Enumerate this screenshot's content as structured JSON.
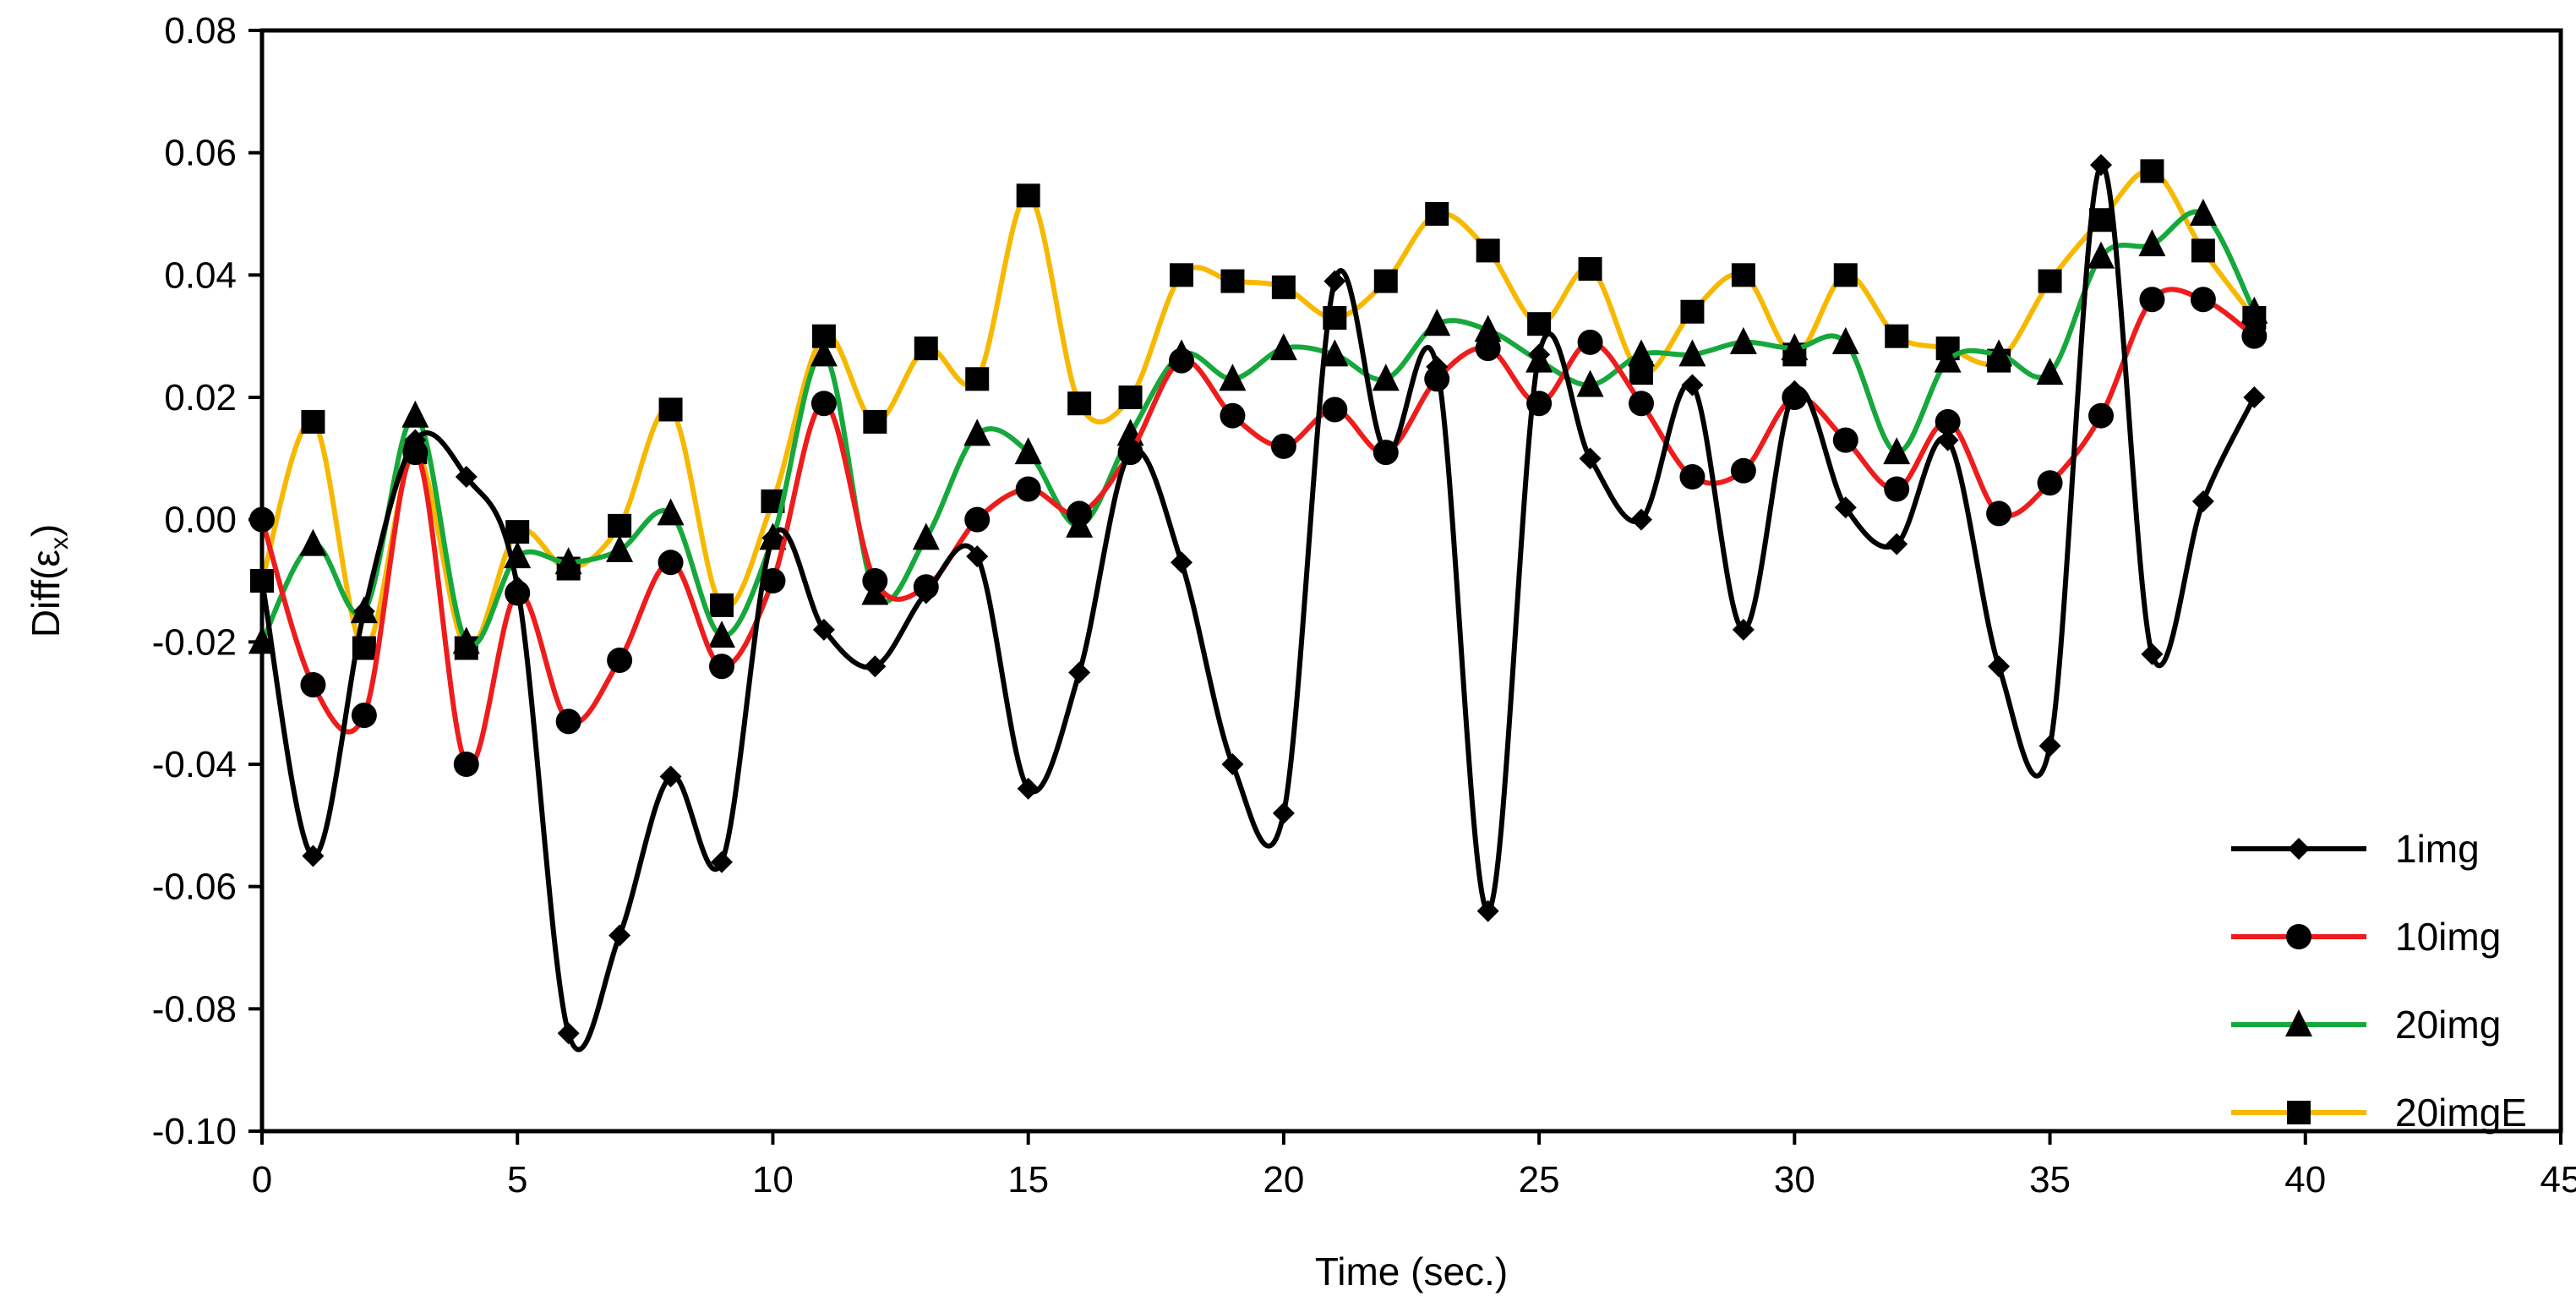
{
  "chart_data": {
    "type": "line",
    "title": "",
    "xlabel": "Time (sec.)",
    "ylabel_main": "Diff(ε",
    "ylabel_sub": "x",
    "ylabel_close": ")",
    "xlim": [
      0,
      45
    ],
    "ylim": [
      -0.1,
      0.08
    ],
    "xticks": [
      0,
      5,
      10,
      15,
      20,
      25,
      30,
      35,
      40,
      45
    ],
    "yticks": [
      -0.1,
      -0.08,
      -0.06,
      -0.04,
      -0.02,
      0.0,
      0.02,
      0.04,
      0.06,
      0.08
    ],
    "ytick_labels": [
      "-0.10",
      "-0.08",
      "-0.06",
      "-0.04",
      "-0.02",
      "0.00",
      "0.02",
      "0.04",
      "0.06",
      "0.08"
    ],
    "xtick_labels": [
      "0",
      "5",
      "10",
      "15",
      "20",
      "25",
      "30",
      "35",
      "40",
      "45"
    ],
    "grid": false,
    "legend_position": "bottom-right",
    "x": [
      0,
      1,
      2,
      3,
      4,
      5,
      6,
      7,
      8,
      9,
      10,
      11,
      12,
      13,
      14,
      15,
      16,
      17,
      18,
      19,
      20,
      21,
      22,
      23,
      24,
      25,
      26,
      27,
      28,
      29,
      30,
      31,
      32,
      33,
      34,
      35,
      36,
      37,
      38,
      39
    ],
    "series": [
      {
        "name": "1img",
        "color": "#000000",
        "marker": "diamond",
        "values": [
          -0.01,
          -0.055,
          -0.015,
          0.013,
          0.007,
          -0.011,
          -0.084,
          -0.068,
          -0.042,
          -0.056,
          -0.003,
          -0.018,
          -0.024,
          -0.012,
          -0.006,
          -0.044,
          -0.025,
          0.011,
          -0.007,
          -0.04,
          -0.048,
          0.039,
          0.011,
          0.025,
          -0.064,
          0.027,
          0.01,
          0.0,
          0.022,
          -0.018,
          0.021,
          0.002,
          -0.004,
          0.013,
          -0.024,
          -0.037,
          0.058,
          -0.022,
          0.003,
          0.02
        ]
      },
      {
        "name": "10img",
        "color": "#ee1c1c",
        "marker": "circle",
        "values": [
          0.0,
          -0.027,
          -0.032,
          0.011,
          -0.04,
          -0.012,
          -0.033,
          -0.023,
          -0.007,
          -0.024,
          -0.01,
          0.019,
          -0.01,
          -0.011,
          0.0,
          0.005,
          0.001,
          0.011,
          0.026,
          0.017,
          0.012,
          0.018,
          0.011,
          0.023,
          0.028,
          0.019,
          0.029,
          0.019,
          0.007,
          0.008,
          0.02,
          0.013,
          0.005,
          0.016,
          0.001,
          0.006,
          0.017,
          0.036,
          0.036,
          0.03
        ]
      },
      {
        "name": "20img",
        "color": "#16a83c",
        "marker": "triangle",
        "values": [
          -0.02,
          -0.004,
          -0.015,
          0.017,
          -0.02,
          -0.006,
          -0.007,
          -0.005,
          0.001,
          -0.019,
          -0.003,
          0.027,
          -0.012,
          -0.003,
          0.014,
          0.011,
          -0.001,
          0.014,
          0.027,
          0.023,
          0.028,
          0.027,
          0.023,
          0.032,
          0.031,
          0.026,
          0.022,
          0.027,
          0.027,
          0.029,
          0.028,
          0.029,
          0.011,
          0.026,
          0.027,
          0.024,
          0.043,
          0.045,
          0.05,
          0.034
        ]
      },
      {
        "name": "20imgE",
        "color": "#f7b800",
        "marker": "square",
        "values": [
          -0.01,
          0.016,
          -0.021,
          0.011,
          -0.021,
          -0.002,
          -0.008,
          -0.001,
          0.018,
          -0.014,
          0.003,
          0.03,
          0.016,
          0.028,
          0.023,
          0.053,
          0.019,
          0.02,
          0.04,
          0.039,
          0.038,
          0.033,
          0.039,
          0.05,
          0.044,
          0.032,
          0.041,
          0.024,
          0.034,
          0.04,
          0.027,
          0.04,
          0.03,
          0.028,
          0.026,
          0.039,
          0.049,
          0.057,
          0.044,
          0.033
        ]
      }
    ]
  }
}
